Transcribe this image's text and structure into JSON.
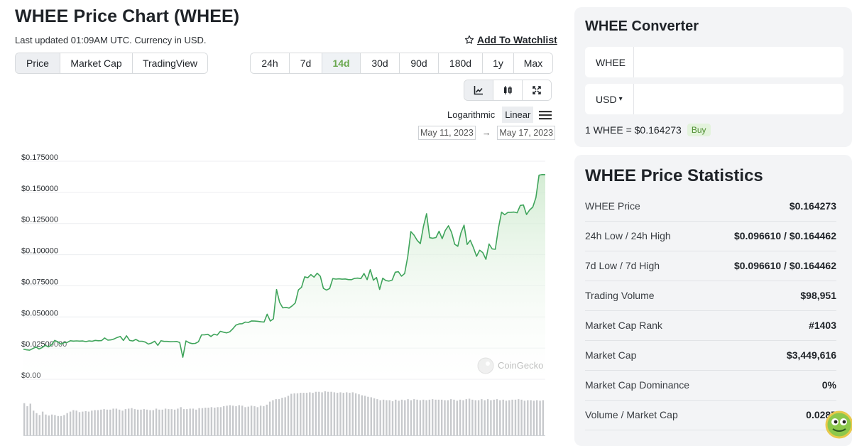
{
  "header": {
    "title": "WHEE Price Chart (WHEE)",
    "updated": "Last updated 01:09AM UTC. Currency in USD.",
    "watchlist_label": "Add To Watchlist"
  },
  "view_tabs": [
    "Price",
    "Market Cap",
    "TradingView"
  ],
  "range_tabs": [
    "24h",
    "7d",
    "14d",
    "30d",
    "90d",
    "180d",
    "1y",
    "Max"
  ],
  "active_range": "14d",
  "scale": {
    "log_label": "Logarithmic",
    "linear_label": "Linear",
    "active": "Linear"
  },
  "date_range": {
    "from": "May 11, 2023",
    "arrow": "→",
    "to": "May 17, 2023"
  },
  "watermark": "CoinGecko",
  "colors": {
    "line": "#3fa45b",
    "area_top": "#d9f0d9",
    "volume": "#c7c9cc",
    "accent_green": "#6aa84f"
  },
  "chart_data": {
    "type": "area",
    "y_ticks": [
      "$0.175000",
      "$0.150000",
      "$0.125000",
      "$0.100000",
      "$0.075000",
      "$0.050000",
      "$0.02500000",
      "$0.00"
    ],
    "ylim": [
      0,
      0.175
    ],
    "grid": true,
    "series": [
      {
        "values": [
          0.0241,
          0.0236,
          0.0233,
          0.0246,
          0.0259,
          0.0243,
          0.0254,
          0.0272,
          0.026,
          0.0276,
          0.0312,
          0.0301,
          0.0282,
          0.0294,
          0.0295,
          0.0309,
          0.0306,
          0.0308,
          0.0306,
          0.0307,
          0.0302,
          0.0308,
          0.0305,
          0.0312,
          0.0309,
          0.031,
          0.0331,
          0.0314,
          0.0316,
          0.0323,
          0.0335,
          0.0344,
          0.0311,
          0.0349,
          0.0312,
          0.0307,
          0.032,
          0.0305,
          0.0305,
          0.0298,
          0.0282,
          0.0291,
          0.0305,
          0.0272,
          0.0309,
          0.0304,
          0.0304,
          0.0301,
          0.0302,
          0.0303,
          0.0295,
          0.0176,
          0.0307,
          0.0293,
          0.0286,
          0.0288,
          0.0301,
          0.0356,
          0.0357,
          0.0361,
          0.0343,
          0.0362,
          0.0354,
          0.0385,
          0.0378,
          0.0372,
          0.038,
          0.0405,
          0.0435,
          0.0444,
          0.0446,
          0.0459,
          0.0456,
          0.0468,
          0.0467,
          0.0465,
          0.0461,
          0.0459,
          0.0522,
          0.0467,
          0.0485,
          0.072,
          0.0616,
          0.0573,
          0.0577,
          0.0571,
          0.0589,
          0.0612,
          0.0717,
          0.0738,
          0.0822,
          0.0815,
          0.084,
          0.0819,
          0.0851,
          0.0827,
          0.0729,
          0.0716,
          0.0728,
          0.0808,
          0.0804,
          0.0806,
          0.0803,
          0.0805,
          0.08,
          0.0799,
          0.081,
          0.0812,
          0.0808,
          0.0849,
          0.0799,
          0.0879,
          0.0795,
          0.0817,
          0.0721,
          0.0811,
          0.0792,
          0.0788,
          0.0796,
          0.0859,
          0.0863,
          0.0827,
          0.0848,
          0.0984,
          0.1185,
          0.1157,
          0.1115,
          0.1088,
          0.1227,
          0.1329,
          0.1136,
          0.1132,
          0.1137,
          0.1188,
          0.1128,
          0.1195,
          0.1232,
          0.1179,
          0.1084,
          0.1067,
          0.1175,
          0.1237,
          0.1082,
          0.1115,
          0.1056,
          0.0987,
          0.1036,
          0.1016,
          0.0963,
          0.1086,
          0.1046,
          0.1043,
          0.1212,
          0.1341,
          0.132,
          0.1339,
          0.134,
          0.1342,
          0.1336,
          0.1395,
          0.1399,
          0.1322,
          0.1359,
          0.1382,
          0.1458,
          0.1638,
          0.1643,
          0.1642
        ]
      }
    ],
    "volume": [
      65,
      59,
      64,
      50,
      45,
      41,
      48,
      42,
      40,
      42,
      41,
      39,
      39,
      41,
      45,
      48,
      51,
      50,
      47,
      48,
      49,
      48,
      50,
      51,
      51,
      52,
      53,
      52,
      52,
      54,
      54,
      52,
      50,
      53,
      54,
      55,
      53,
      52,
      52,
      53,
      52,
      51,
      51,
      54,
      52,
      52,
      54,
      53,
      53,
      52,
      54,
      57,
      53,
      53,
      54,
      54,
      52,
      55,
      55,
      56,
      56,
      57,
      56,
      57,
      57,
      59,
      60,
      61,
      60,
      59,
      61,
      60,
      57,
      58,
      60,
      59,
      57,
      60,
      59,
      62,
      68,
      71,
      73,
      73,
      76,
      77,
      80,
      84,
      85,
      85,
      86,
      86,
      86,
      87,
      86,
      88,
      88,
      87,
      89,
      88,
      88,
      87,
      86,
      87,
      86,
      87,
      86,
      87,
      85,
      83,
      81,
      80,
      78,
      77,
      75,
      73,
      71,
      72,
      71,
      71,
      69,
      72,
      70,
      72,
      71,
      73,
      71,
      73,
      72,
      71,
      72,
      71,
      72,
      73,
      72,
      72,
      72,
      71,
      71,
      73,
      72,
      70,
      72,
      71,
      73,
      74,
      72,
      71,
      71,
      73,
      71,
      73,
      71,
      72,
      73,
      71,
      72,
      70,
      71,
      72,
      72,
      73,
      72,
      70,
      71,
      71,
      70,
      71,
      70,
      71
    ]
  },
  "converter": {
    "title": "WHEE Converter",
    "from_currency": "WHEE",
    "to_currency": "USD",
    "to_caret": "▾",
    "rate_text": "1 WHEE = $0.164273",
    "buy_label": "Buy"
  },
  "stats": {
    "title": "WHEE Price Statistics",
    "rows": [
      {
        "label": "WHEE Price",
        "value": "$0.164273"
      },
      {
        "label": "24h Low / 24h High",
        "value": "$0.096610 / $0.164462"
      },
      {
        "label": "7d Low / 7d High",
        "value": "$0.096610 / $0.164462"
      },
      {
        "label": "Trading Volume",
        "value": "$98,951"
      },
      {
        "label": "Market Cap Rank",
        "value": "#1403"
      },
      {
        "label": "Market Cap",
        "value": "$3,449,616"
      },
      {
        "label": "Market Cap Dominance",
        "value": "0%"
      },
      {
        "label": "Volume / Market Cap",
        "value": "0.0287"
      }
    ]
  },
  "icons": {
    "star": "star-icon",
    "line_chart": "line-chart-icon",
    "candlestick": "candlestick-icon",
    "fullscreen": "fullscreen-icon",
    "menu": "menu-icon",
    "gecko": "coingecko-logo-icon"
  }
}
